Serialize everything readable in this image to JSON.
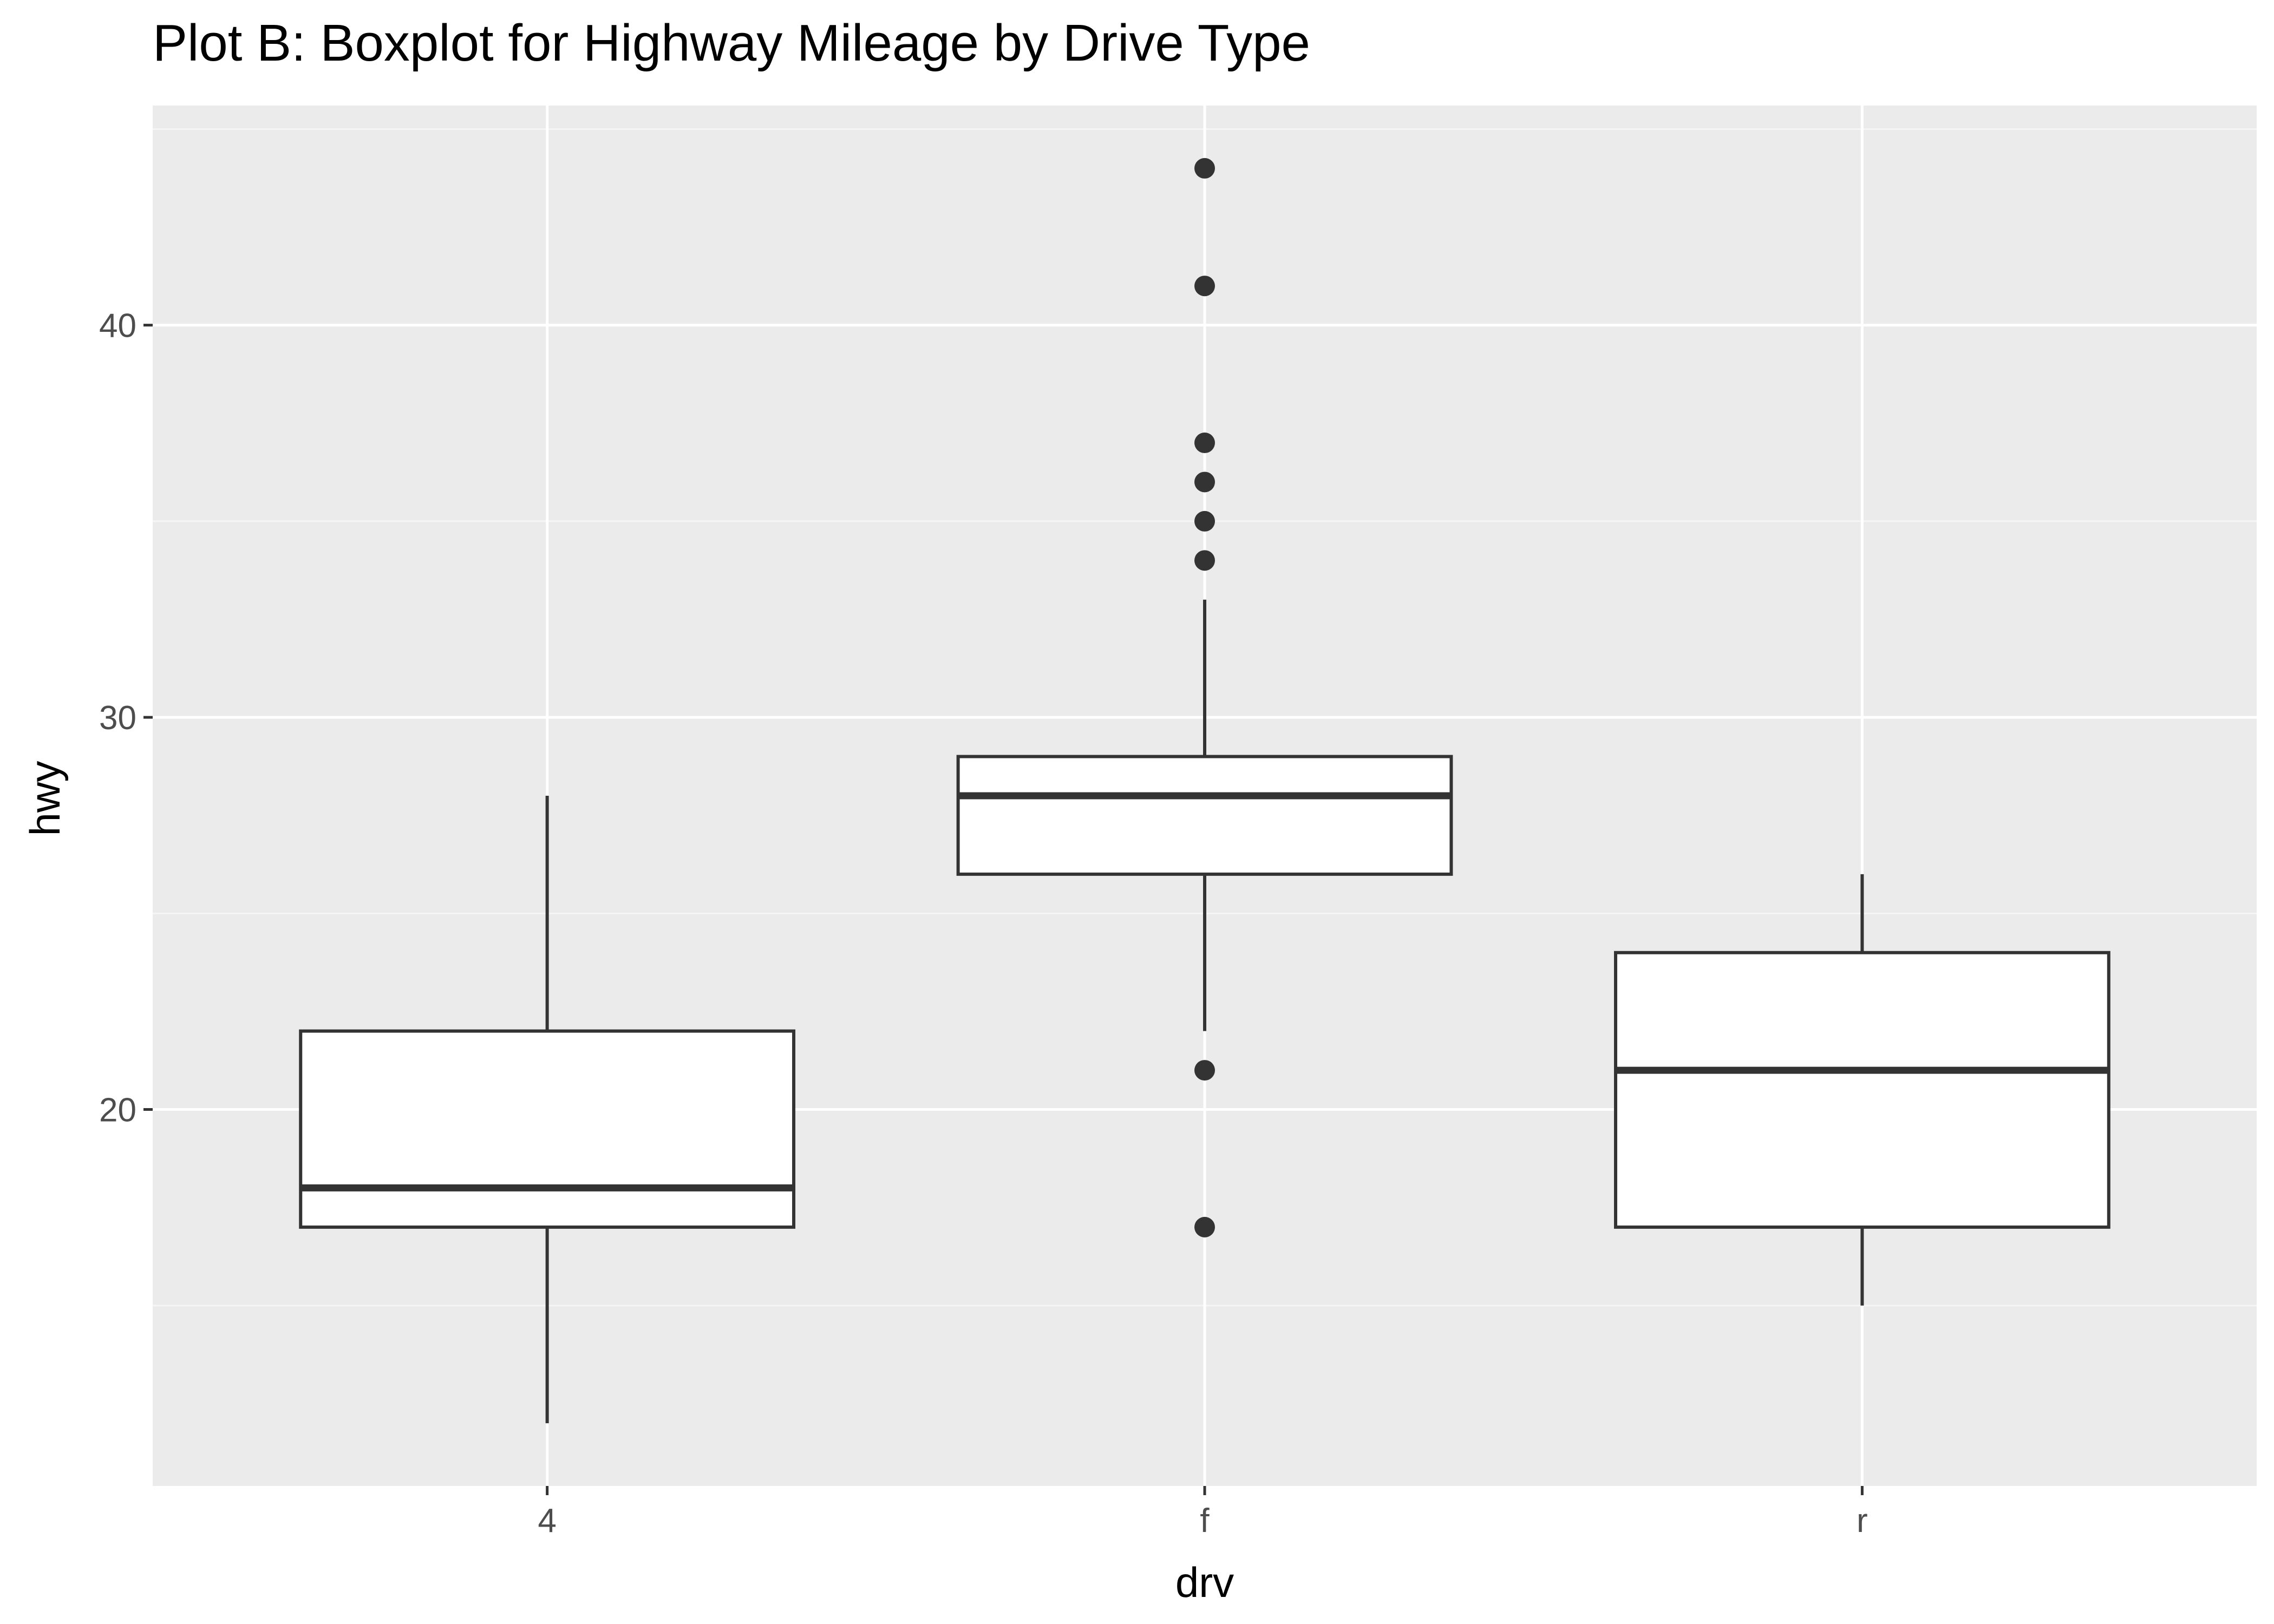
{
  "chart_data": {
    "type": "boxplot",
    "title": "Plot B: Boxplot for Highway Mileage by Drive Type",
    "xlabel": "drv",
    "ylabel": "hwy",
    "categories": [
      "4",
      "f",
      "r"
    ],
    "ylim": [
      10.4,
      45.6
    ],
    "y_ticks": [
      20,
      30,
      40
    ],
    "y_tick_labels": [
      "20",
      "30",
      "40"
    ],
    "grid": true,
    "boxes": [
      {
        "category": "4",
        "whisker_low": 12,
        "q1": 17,
        "median": 18,
        "q3": 22,
        "whisker_high": 28,
        "outliers": []
      },
      {
        "category": "f",
        "whisker_low": 22,
        "q1": 26,
        "median": 28,
        "q3": 29,
        "whisker_high": 33,
        "outliers": [
          17,
          21,
          34,
          35,
          36,
          37,
          41,
          44
        ]
      },
      {
        "category": "r",
        "whisker_low": 15,
        "q1": 17,
        "median": 21,
        "q3": 24,
        "whisker_high": 26,
        "outliers": []
      }
    ],
    "colors": {
      "panel_background": "#ebebeb",
      "grid_major": "#ffffff",
      "grid_minor": "#f5f5f5",
      "box_fill": "#ffffff",
      "box_line": "#333333",
      "outlier": "#333333",
      "tick": "#333333",
      "tick_label": "#4d4d4d"
    }
  }
}
